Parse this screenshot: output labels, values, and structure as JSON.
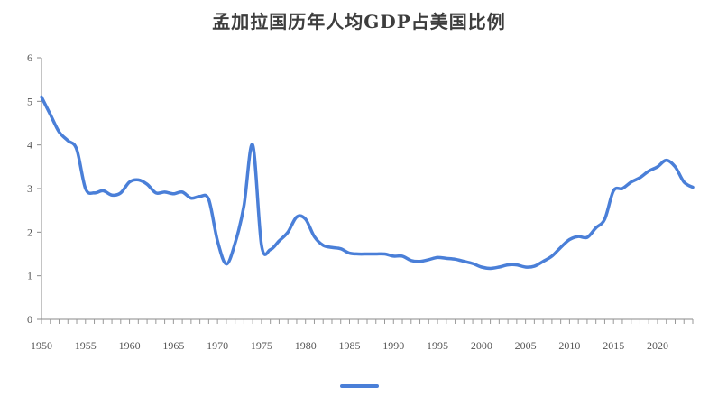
{
  "chart_data": {
    "type": "line",
    "title": "孟加拉国历年人均GDP占美国比例",
    "xlabel": "",
    "ylabel": "",
    "xlim": [
      1950,
      2024
    ],
    "ylim": [
      0,
      6
    ],
    "x_ticks": [
      1950,
      1955,
      1960,
      1965,
      1970,
      1975,
      1980,
      1985,
      1990,
      1995,
      2000,
      2005,
      2010,
      2015,
      2020
    ],
    "y_ticks": [
      0,
      1,
      2,
      3,
      4,
      5,
      6
    ],
    "grid": false,
    "legend": "bottom-center",
    "series_color": "#4a7fd8",
    "series": [
      {
        "x": [
          1950,
          1951,
          1952,
          1953,
          1954,
          1955,
          1956,
          1957,
          1958,
          1959,
          1960,
          1961,
          1962,
          1963,
          1964,
          1965,
          1966,
          1967,
          1968,
          1969,
          1970,
          1971,
          1972,
          1973,
          1974,
          1975,
          1976,
          1977,
          1978,
          1979,
          1980,
          1981,
          1982,
          1983,
          1984,
          1985,
          1986,
          1987,
          1988,
          1989,
          1990,
          1991,
          1992,
          1993,
          1994,
          1995,
          1996,
          1997,
          1998,
          1999,
          2000,
          2001,
          2002,
          2003,
          2004,
          2005,
          2006,
          2007,
          2008,
          2009,
          2010,
          2011,
          2012,
          2013,
          2014,
          2015,
          2016,
          2017,
          2018,
          2019,
          2020,
          2021,
          2022,
          2023,
          2024
        ],
        "values": [
          5.1,
          4.7,
          4.3,
          4.1,
          3.9,
          3.0,
          2.9,
          2.95,
          2.85,
          2.9,
          3.15,
          3.2,
          3.1,
          2.9,
          2.92,
          2.88,
          2.92,
          2.78,
          2.82,
          2.75,
          1.8,
          1.27,
          1.75,
          2.6,
          4.0,
          1.7,
          1.6,
          1.8,
          2.0,
          2.35,
          2.3,
          1.9,
          1.7,
          1.65,
          1.62,
          1.52,
          1.5,
          1.5,
          1.5,
          1.5,
          1.45,
          1.45,
          1.35,
          1.33,
          1.37,
          1.42,
          1.4,
          1.38,
          1.33,
          1.28,
          1.2,
          1.17,
          1.2,
          1.25,
          1.25,
          1.2,
          1.22,
          1.33,
          1.45,
          1.65,
          1.83,
          1.9,
          1.88,
          2.1,
          2.3,
          2.95,
          3.0,
          3.15,
          3.25,
          3.4,
          3.5,
          3.65,
          3.5,
          3.15,
          3.03
        ]
      }
    ]
  }
}
